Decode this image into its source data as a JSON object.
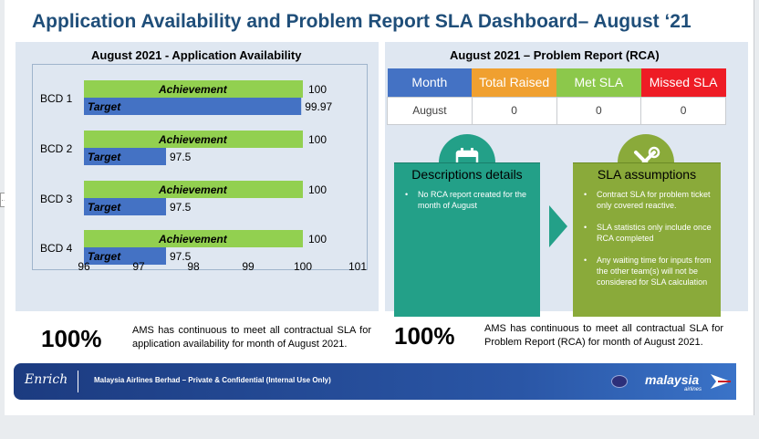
{
  "title": "Application Availability and Problem Report SLA Dashboard– August ‘21",
  "left_section": {
    "title": "August 2021 - Application Availability",
    "legend": {
      "achievement": "Achievement",
      "target": "Target"
    }
  },
  "chart_data": {
    "type": "bar",
    "orientation": "horizontal",
    "categories": [
      "BCD 1",
      "BCD 2",
      "BCD 3",
      "BCD 4"
    ],
    "series": [
      {
        "name": "Achievement",
        "values": [
          100,
          100,
          100,
          100
        ],
        "value_labels": [
          "100",
          "100",
          "100",
          "100"
        ],
        "color": "#92d050"
      },
      {
        "name": "Target",
        "values": [
          99.97,
          97.5,
          97.5,
          97.5
        ],
        "value_labels": [
          "99.97",
          "97.5",
          "97.5",
          "97.5"
        ],
        "color": "#4472c4"
      }
    ],
    "xlim": [
      96,
      101
    ],
    "xticks": [
      "96",
      "97",
      "98",
      "99",
      "100",
      "101"
    ],
    "grid": false,
    "legend_position": "bottom"
  },
  "right_section": {
    "title": "August 2021 – Problem Report (RCA)",
    "table": {
      "headers": [
        {
          "label": "Month",
          "color": "#4472c4"
        },
        {
          "label": "Total Raised",
          "color": "#f0a030"
        },
        {
          "label": "Met SLA",
          "color": "#8cc84b"
        },
        {
          "label": "Missed SLA",
          "color": "#ee1c25"
        }
      ],
      "row": [
        "August",
        "0",
        "0",
        "0"
      ]
    },
    "descriptions": {
      "heading": "Descriptions details",
      "icon": "calendar-icon",
      "items": [
        "No RCA report created for the month of August"
      ]
    },
    "assumptions": {
      "heading": "SLA assumptions",
      "icon": "tools-icon",
      "items": [
        "Contract SLA for problem ticket only covered reactive.",
        "SLA statistics only include once RCA completed",
        "Any waiting time for inputs from the other team(s) will not be considered for SLA calculation"
      ]
    },
    "arrow_icon": "chevron-right-icon"
  },
  "summary_left": {
    "pct": "100%",
    "text": "AMS has continuous to meet all contractual SLA for application availability for month of August 2021."
  },
  "summary_right": {
    "pct": "100%",
    "text": "AMS has continuous to meet all contractual SLA for Problem Report (RCA) for month of August 2021."
  },
  "footer": {
    "logo": "Enrich",
    "text": "Malaysia Airlines Berhad – Private & Confidential (Internal Use Only)",
    "brand": "malaysia",
    "brand_sub": "airlines"
  },
  "colors": {
    "title": "#1f4e79",
    "panel_bg": "#dfe7f1",
    "teal": "#23a088",
    "olive": "#8aaa3a"
  }
}
